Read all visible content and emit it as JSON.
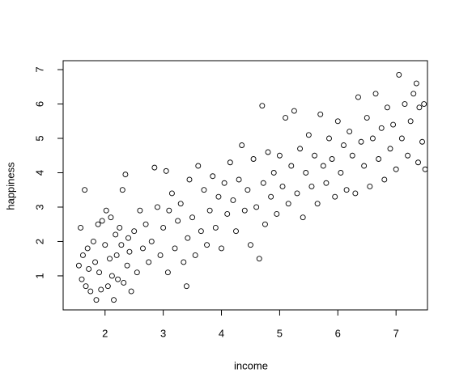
{
  "chart_data": {
    "type": "scatter",
    "x_label": "income",
    "y_label": "happiness",
    "color": "#000000",
    "x": [
      1.55,
      1.58,
      1.6,
      1.62,
      1.65,
      1.67,
      1.7,
      1.72,
      1.75,
      1.8,
      1.83,
      1.85,
      1.88,
      1.9,
      1.93,
      1.95,
      2.0,
      2.02,
      2.05,
      2.08,
      2.1,
      2.12,
      2.15,
      2.18,
      2.2,
      2.22,
      2.25,
      2.28,
      2.3,
      2.32,
      2.35,
      2.38,
      2.4,
      2.42,
      2.45,
      2.5,
      2.55,
      2.6,
      2.65,
      2.7,
      2.75,
      2.8,
      2.85,
      2.9,
      2.95,
      3.0,
      3.05,
      3.08,
      3.1,
      3.15,
      3.2,
      3.25,
      3.3,
      3.35,
      3.4,
      3.42,
      3.45,
      3.5,
      3.55,
      3.6,
      3.65,
      3.7,
      3.75,
      3.8,
      3.85,
      3.9,
      3.95,
      4.0,
      4.05,
      4.1,
      4.15,
      4.2,
      4.25,
      4.3,
      4.35,
      4.4,
      4.45,
      4.5,
      4.55,
      4.6,
      4.65,
      4.7,
      4.72,
      4.75,
      4.8,
      4.85,
      4.9,
      4.95,
      5.0,
      5.05,
      5.1,
      5.15,
      5.2,
      5.25,
      5.3,
      5.35,
      5.4,
      5.45,
      5.5,
      5.55,
      5.6,
      5.65,
      5.7,
      5.75,
      5.8,
      5.85,
      5.9,
      5.95,
      6.0,
      6.05,
      6.1,
      6.15,
      6.2,
      6.25,
      6.3,
      6.35,
      6.4,
      6.45,
      6.5,
      6.55,
      6.6,
      6.65,
      6.7,
      6.75,
      6.8,
      6.85,
      6.9,
      6.95,
      7.0,
      7.05,
      7.1,
      7.15,
      7.2,
      7.25,
      7.3,
      7.35,
      7.38,
      7.4,
      7.45,
      7.48,
      7.5
    ],
    "values": [
      1.3,
      2.4,
      0.9,
      1.6,
      3.5,
      0.7,
      1.8,
      1.2,
      0.55,
      2.0,
      1.4,
      0.3,
      2.5,
      1.1,
      0.6,
      2.6,
      1.9,
      2.9,
      0.7,
      1.5,
      2.7,
      1.0,
      0.3,
      2.2,
      1.6,
      0.9,
      2.4,
      1.9,
      3.5,
      0.8,
      3.95,
      1.3,
      2.1,
      1.7,
      0.55,
      2.3,
      1.1,
      2.9,
      1.8,
      2.5,
      1.4,
      2.0,
      4.15,
      3.0,
      1.6,
      2.4,
      4.05,
      1.1,
      2.9,
      3.4,
      1.8,
      2.6,
      3.1,
      1.4,
      0.7,
      2.1,
      3.8,
      2.7,
      1.6,
      4.2,
      2.3,
      3.5,
      1.9,
      2.9,
      3.9,
      2.4,
      3.3,
      1.8,
      3.7,
      2.8,
      4.3,
      3.2,
      2.3,
      3.8,
      4.8,
      2.9,
      3.5,
      1.9,
      4.4,
      3.0,
      1.5,
      5.95,
      3.7,
      2.5,
      4.6,
      3.3,
      4.0,
      2.8,
      4.5,
      3.6,
      5.6,
      3.1,
      4.2,
      5.8,
      3.4,
      4.7,
      2.7,
      4.0,
      5.1,
      3.6,
      4.5,
      3.1,
      5.7,
      4.2,
      3.7,
      5.0,
      4.4,
      3.3,
      5.5,
      4.0,
      4.8,
      3.5,
      5.2,
      4.5,
      3.4,
      6.2,
      4.9,
      4.2,
      5.6,
      3.6,
      5.0,
      6.3,
      4.4,
      5.3,
      3.8,
      5.9,
      4.7,
      5.4,
      4.1,
      6.85,
      5.0,
      6.0,
      4.5,
      5.5,
      6.3,
      6.6,
      4.3,
      5.9,
      4.9,
      6.0,
      4.1
    ],
    "xlim": [
      1.28,
      7.54
    ],
    "ylim": [
      0.01,
      7.26
    ],
    "xticks": [
      2,
      3,
      4,
      5,
      6,
      7
    ],
    "yticks": [
      1,
      2,
      3,
      4,
      5,
      6,
      7
    ]
  }
}
